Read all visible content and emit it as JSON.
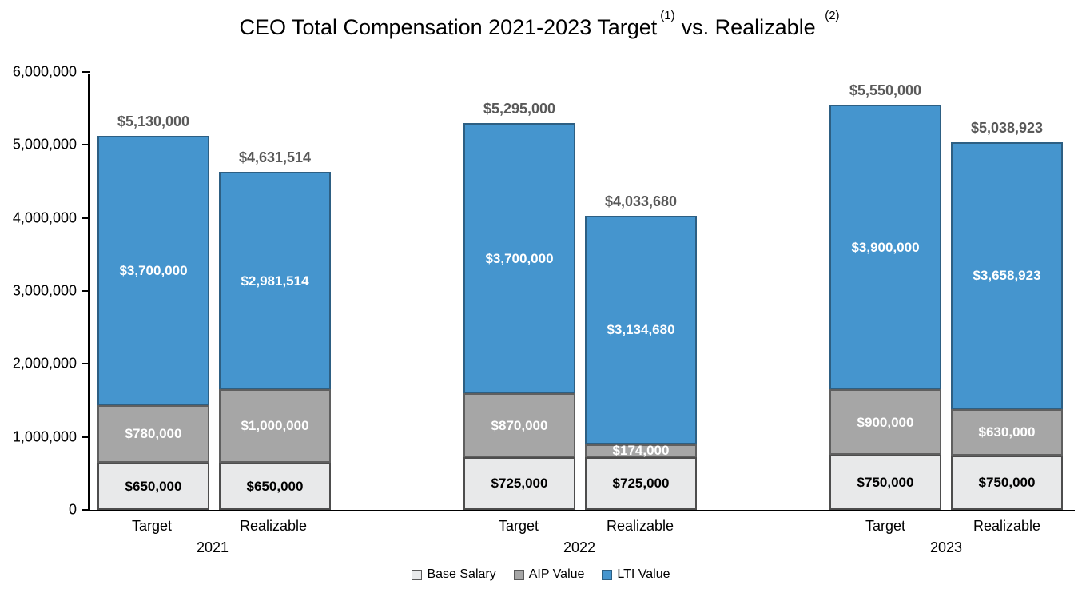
{
  "title": {
    "part1": "CEO Total Compensation 2021-2023 Target",
    "sup1": "(1)",
    "part2": "vs. Realizable",
    "sup2": "(2)"
  },
  "chart_data": {
    "type": "bar",
    "stacked": true,
    "ylim": [
      0,
      6000000
    ],
    "ytick_step": 1000000,
    "yticks": [
      "0",
      "1,000,000",
      "2,000,000",
      "3,000,000",
      "4,000,000",
      "5,000,000",
      "6,000,000"
    ],
    "colors": {
      "base": "#e8e9ea",
      "aip": "#a6a6a6",
      "lti": "#4595ce",
      "total_label": "#595959"
    },
    "legend": [
      {
        "key": "base",
        "label": "Base Salary"
      },
      {
        "key": "aip",
        "label": "AIP Value"
      },
      {
        "key": "lti",
        "label": "LTI Value"
      }
    ],
    "groups": [
      {
        "year": "2021",
        "bars": [
          {
            "label": "Target",
            "values": {
              "base": 650000,
              "aip": 780000,
              "lti": 3700000
            },
            "total": 5130000,
            "value_labels": {
              "base": "$650,000",
              "aip": "$780,000",
              "lti": "$3,700,000"
            },
            "total_label": "$5,130,000"
          },
          {
            "label": "Realizable",
            "values": {
              "base": 650000,
              "aip": 1000000,
              "lti": 2981514
            },
            "total": 4631514,
            "value_labels": {
              "base": "$650,000",
              "aip": "$1,000,000",
              "lti": "$2,981,514"
            },
            "total_label": "$4,631,514"
          }
        ]
      },
      {
        "year": "2022",
        "bars": [
          {
            "label": "Target",
            "values": {
              "base": 725000,
              "aip": 870000,
              "lti": 3700000
            },
            "total": 5295000,
            "value_labels": {
              "base": "$725,000",
              "aip": "$870,000",
              "lti": "$3,700,000"
            },
            "total_label": "$5,295,000"
          },
          {
            "label": "Realizable",
            "values": {
              "base": 725000,
              "aip": 174000,
              "lti": 3134680
            },
            "total": 4033680,
            "value_labels": {
              "base": "$725,000",
              "aip": "$174,000",
              "lti": "$3,134,680"
            },
            "total_label": "$4,033,680"
          }
        ]
      },
      {
        "year": "2023",
        "bars": [
          {
            "label": "Target",
            "values": {
              "base": 750000,
              "aip": 900000,
              "lti": 3900000
            },
            "total": 5550000,
            "value_labels": {
              "base": "$750,000",
              "aip": "$900,000",
              "lti": "$3,900,000"
            },
            "total_label": "$5,550,000"
          },
          {
            "label": "Realizable",
            "values": {
              "base": 750000,
              "aip": 630000,
              "lti": 3658923
            },
            "total": 5038923,
            "value_labels": {
              "base": "$750,000",
              "aip": "$630,000",
              "lti": "$3,658,923"
            },
            "total_label": "$5,038,923"
          }
        ]
      }
    ]
  }
}
